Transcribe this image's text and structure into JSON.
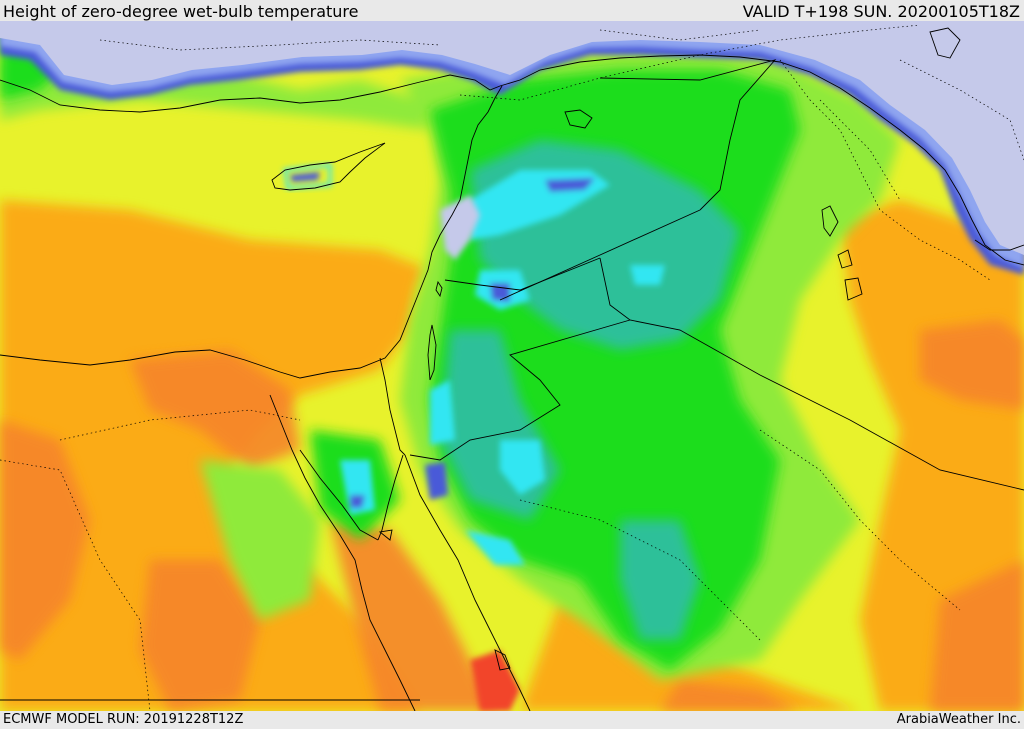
{
  "header": {
    "title": "Height of zero-degree wet-bulb temperature",
    "valid": "VALID T+198 SUN. 20200105T18Z"
  },
  "footer": {
    "model_run": "ECMWF MODEL RUN: 20191228T12Z",
    "credit": "ArabiaWeather Inc."
  },
  "colors": {
    "sea": "#c5c9ea",
    "band_blue": "#4a5ad8",
    "band_light_blue": "#8fa5f0",
    "band_cyan": "#33e6f2",
    "band_teal": "#2fbfa0",
    "band_green": "#1ddd1d",
    "band_light_green": "#8fea3a",
    "band_yellow": "#e8f22c",
    "band_orange": "#fbab14",
    "band_dark_orange": "#f6852b",
    "band_red": "#f2442a",
    "coastline": "#000000",
    "border": "#000000"
  }
}
